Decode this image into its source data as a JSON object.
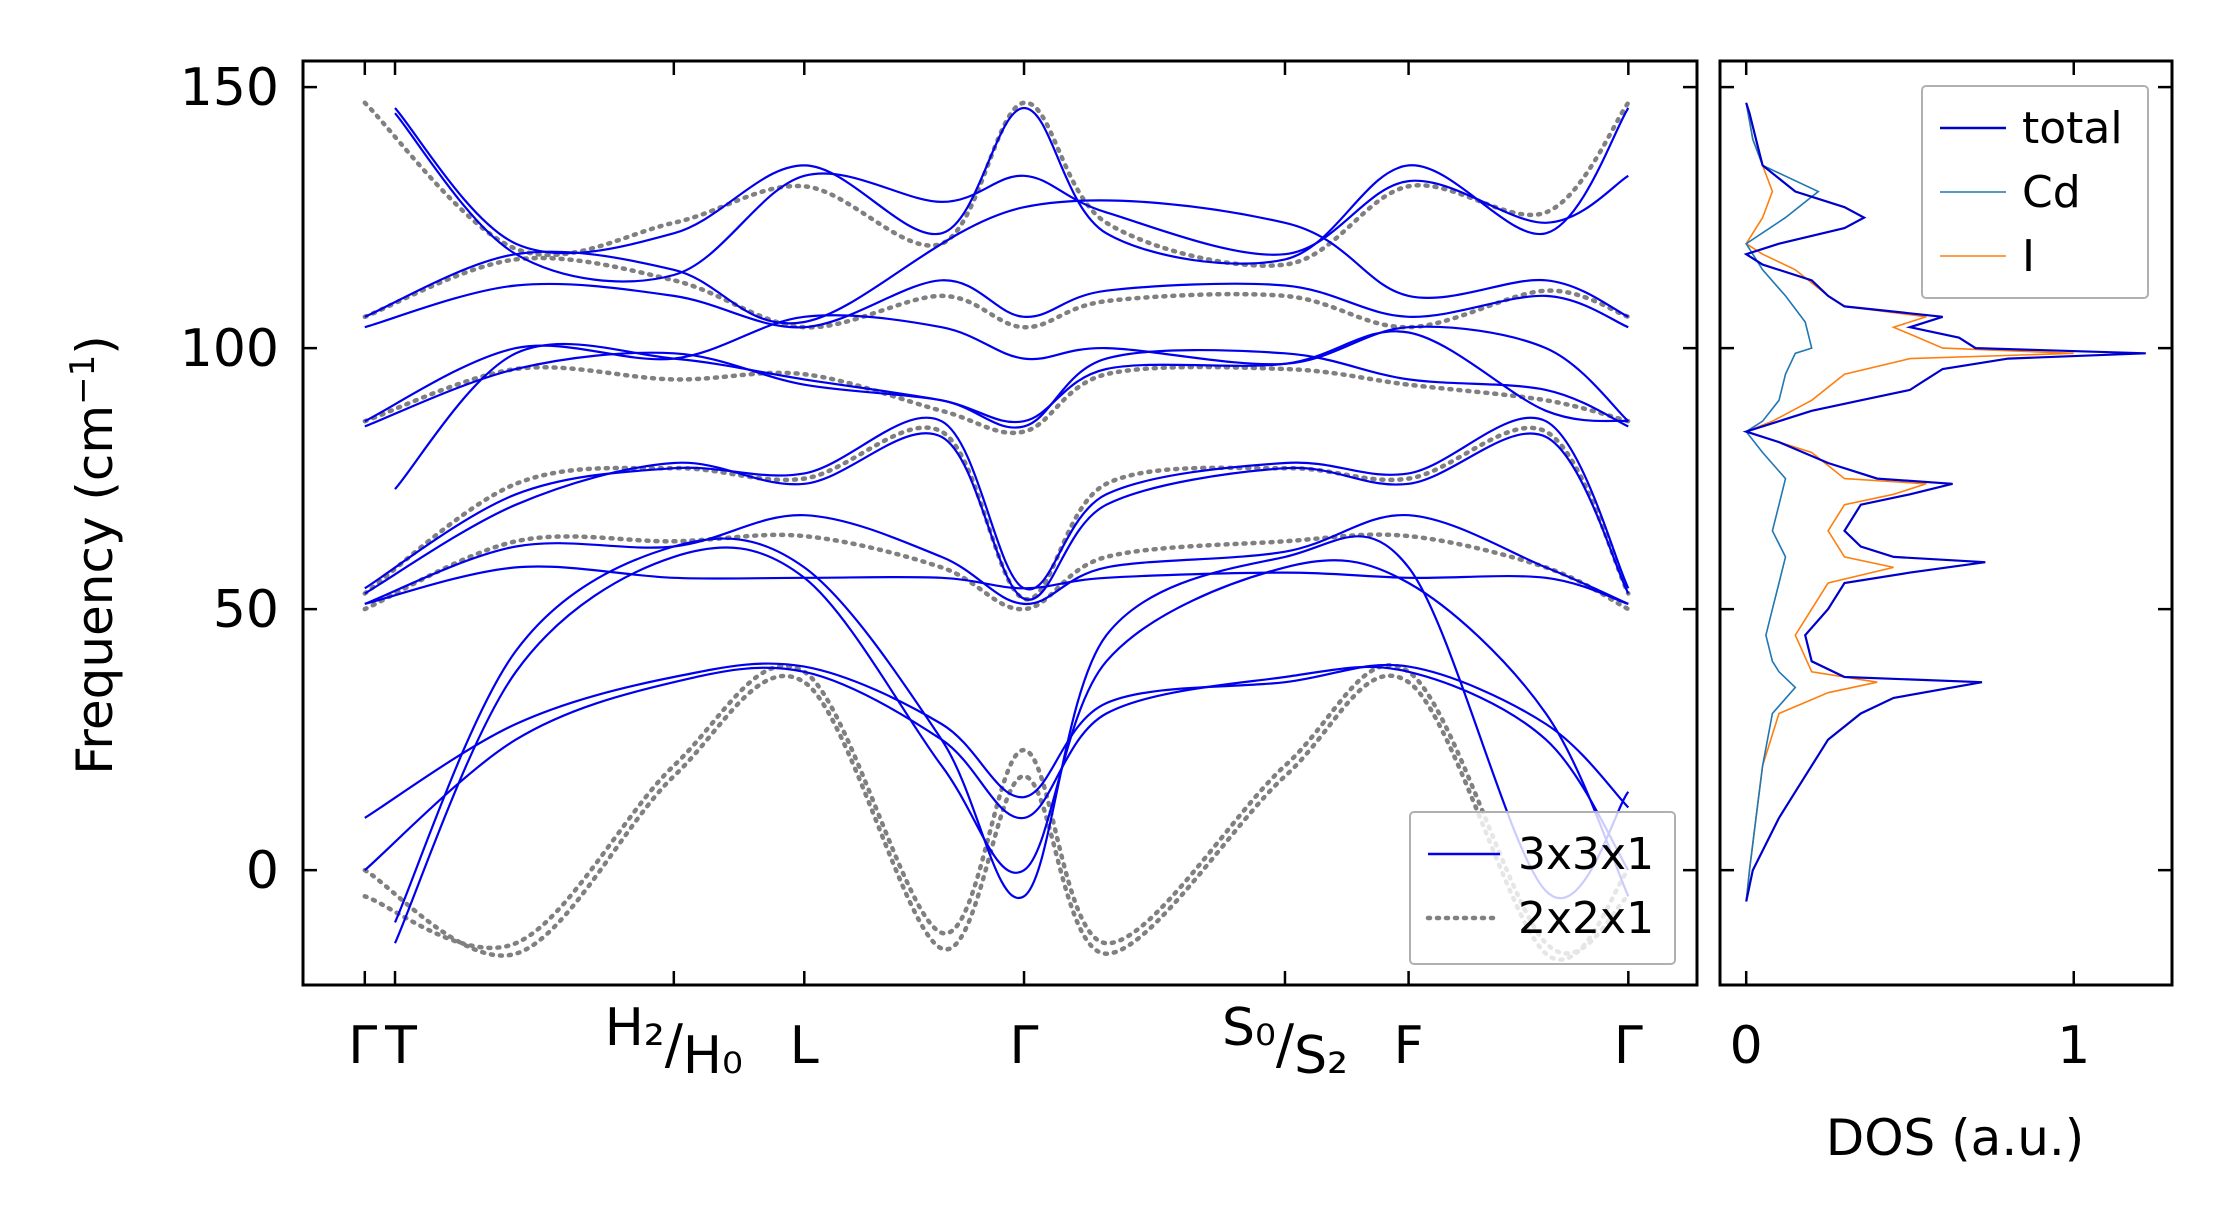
{
  "chart_data": [
    {
      "type": "line",
      "panel": "phonon-dispersion",
      "ylabel": "Frequency (cm",
      "ylabel_sup": "−1",
      "ylabel_close": ")",
      "ylim": [
        -22,
        155
      ],
      "yticks": [
        0,
        50,
        100,
        150
      ],
      "xticks": [
        {
          "pos": 0.0,
          "label": "Γ"
        },
        {
          "pos": 0.22,
          "label": "T"
        },
        {
          "pos": 2.25,
          "label": "H₂/H₀"
        },
        {
          "pos": 3.2,
          "label": "L"
        },
        {
          "pos": 4.8,
          "label": "Γ"
        },
        {
          "pos": 6.7,
          "label": "S₀/S₂"
        },
        {
          "pos": 7.6,
          "label": "F"
        },
        {
          "pos": 9.2,
          "label": "Γ"
        }
      ],
      "xlim": [
        -0.45,
        9.7
      ],
      "legend": {
        "placement": "lower-right",
        "entries": [
          {
            "name": "3x3x1",
            "color": "#0000ee",
            "style": "solid"
          },
          {
            "name": "2x2x1",
            "color": "#808080",
            "style": "dotted"
          }
        ]
      },
      "series": [
        {
          "name": "3x3x1",
          "color": "#0000ee",
          "bands": [
            {
              "x": [
                0.22,
                1.1,
                2.25,
                3.2,
                4.2,
                4.8,
                5.4,
                6.7,
                7.6,
                8.6,
                9.2
              ],
              "y": [
                146,
                120,
                122,
                135,
                122,
                146,
                122,
                117,
                135,
                122,
                146
              ]
            },
            {
              "x": [
                0.22,
                1.1,
                2.25,
                3.2,
                4.2,
                4.8,
                5.4,
                6.7,
                7.6,
                8.6,
                9.2
              ],
              "y": [
                145,
                118,
                114,
                133,
                128,
                133,
                126,
                118,
                132,
                124,
                133
              ]
            },
            {
              "x": [
                0.0,
                1.1,
                2.25,
                3.2,
                4.8,
                6.7,
                7.6,
                8.6,
                9.2
              ],
              "y": [
                106,
                118,
                115,
                105,
                127,
                124,
                110,
                113,
                106
              ]
            },
            {
              "x": [
                0.0,
                1.1,
                2.25,
                3.2,
                4.2,
                4.8,
                5.4,
                6.7,
                7.6,
                8.6,
                9.2
              ],
              "y": [
                104,
                112,
                110,
                104,
                113,
                106,
                111,
                112,
                106,
                110,
                104
              ]
            },
            {
              "x": [
                0.0,
                1.1,
                2.25,
                3.2,
                4.2,
                4.8,
                5.4,
                6.7,
                7.6,
                8.6,
                9.2
              ],
              "y": [
                86,
                100,
                98,
                106,
                104,
                98,
                100,
                97,
                104,
                100,
                86
              ]
            },
            {
              "x": [
                0.0,
                1.1,
                2.25,
                3.2,
                4.2,
                4.8,
                5.4,
                6.7,
                7.6,
                8.6,
                9.2
              ],
              "y": [
                85,
                96,
                99,
                93,
                90,
                85,
                98,
                99,
                94,
                92,
                85
              ]
            },
            {
              "x": [
                0.22,
                1.1,
                2.25,
                3.2,
                4.2,
                4.8,
                5.4,
                6.7,
                7.6,
                8.6,
                9.2
              ],
              "y": [
                73,
                99,
                98,
                94,
                90,
                86,
                96,
                97,
                103,
                88,
                86
              ]
            },
            {
              "x": [
                0.0,
                1.1,
                2.25,
                3.2,
                4.2,
                4.8,
                5.4,
                6.7,
                7.6,
                8.6,
                9.2
              ],
              "y": [
                54,
                72,
                77,
                76,
                86,
                54,
                72,
                78,
                76,
                86,
                54
              ]
            },
            {
              "x": [
                0.0,
                1.1,
                2.25,
                3.2,
                4.2,
                4.8,
                5.4,
                6.7,
                7.6,
                8.6,
                9.2
              ],
              "y": [
                53,
                70,
                78,
                74,
                83,
                52,
                70,
                77,
                74,
                83,
                53
              ]
            },
            {
              "x": [
                0.0,
                1.1,
                2.25,
                3.2,
                4.2,
                4.8,
                5.4,
                6.7,
                7.6,
                8.6,
                9.2
              ],
              "y": [
                51,
                62,
                62,
                68,
                60,
                51,
                58,
                61,
                68,
                58,
                51
              ]
            },
            {
              "x": [
                0.0,
                1.1,
                2.25,
                3.2,
                4.2,
                4.8,
                5.4,
                6.7,
                7.6,
                8.6,
                9.2
              ],
              "y": [
                51,
                58,
                56,
                56,
                56,
                54,
                56,
                57,
                56,
                56,
                51
              ]
            },
            {
              "x": [
                0.0,
                1.1,
                2.25,
                3.2,
                4.2,
                4.8,
                5.4,
                6.7,
                7.6,
                8.6,
                9.2
              ],
              "y": [
                0,
                25,
                36,
                38,
                25,
                10,
                30,
                37,
                38,
                25,
                0
              ]
            },
            {
              "x": [
                0.0,
                1.1,
                2.25,
                3.2,
                4.2,
                4.8,
                5.4,
                6.7,
                7.6,
                8.6,
                9.2
              ],
              "y": [
                10,
                28,
                37,
                39,
                28,
                14,
                32,
                36,
                39,
                28,
                12
              ]
            },
            {
              "x": [
                0.22,
                1.1,
                2.25,
                3.2,
                4.2,
                4.8,
                5.4,
                6.7,
                7.6,
                8.6,
                9.2
              ],
              "y": [
                -14,
                38,
                60,
                56,
                20,
                0,
                40,
                58,
                55,
                30,
                -5
              ]
            },
            {
              "x": [
                0.22,
                1.1,
                2.25,
                3.2,
                4.2,
                4.8,
                5.4,
                6.7,
                7.6,
                8.6,
                9.2
              ],
              "y": [
                -10,
                42,
                62,
                58,
                25,
                -5,
                45,
                60,
                58,
                -4,
                15
              ]
            }
          ]
        },
        {
          "name": "2x2x1",
          "color": "#808080",
          "bands": [
            {
              "x": [
                0.0,
                1.1,
                2.25,
                3.2,
                4.2,
                4.8,
                5.4,
                6.7,
                7.6,
                8.6,
                9.2
              ],
              "y": [
                147,
                119,
                124,
                131,
                120,
                147,
                124,
                116,
                131,
                126,
                147
              ]
            },
            {
              "x": [
                0.0,
                1.1,
                2.25,
                3.2,
                4.2,
                4.8,
                5.4,
                6.7,
                7.6,
                8.6,
                9.2
              ],
              "y": [
                106,
                117,
                113,
                104,
                110,
                104,
                109,
                110,
                104,
                111,
                106
              ]
            },
            {
              "x": [
                0.0,
                1.1,
                2.25,
                3.2,
                4.2,
                4.8,
                5.4,
                6.7,
                7.6,
                8.6,
                9.2
              ],
              "y": [
                86,
                96,
                94,
                95,
                88,
                84,
                95,
                96,
                93,
                90,
                86
              ]
            },
            {
              "x": [
                0.0,
                1.1,
                2.25,
                3.2,
                4.2,
                4.8,
                5.4,
                6.7,
                7.6,
                8.6,
                9.2
              ],
              "y": [
                53,
                74,
                77,
                75,
                84,
                52,
                74,
                77,
                75,
                84,
                53
              ]
            },
            {
              "x": [
                0.0,
                1.1,
                2.25,
                3.2,
                4.2,
                4.8,
                5.4,
                6.7,
                7.6,
                8.6,
                9.2
              ],
              "y": [
                50,
                63,
                63,
                64,
                58,
                50,
                60,
                63,
                64,
                58,
                50
              ]
            },
            {
              "x": [
                0.0,
                1.1,
                2.25,
                3.2,
                4.2,
                4.8,
                5.4,
                6.7,
                7.6,
                8.6,
                9.2
              ],
              "y": [
                -5,
                -14,
                20,
                38,
                -12,
                23,
                -14,
                20,
                38,
                -14,
                -5
              ]
            },
            {
              "x": [
                0.0,
                1.1,
                2.25,
                3.2,
                4.2,
                4.8,
                5.4,
                6.7,
                7.6,
                8.6,
                9.2
              ],
              "y": [
                0,
                -16,
                18,
                36,
                -15,
                18,
                -16,
                18,
                36,
                -16,
                0
              ]
            }
          ]
        }
      ]
    },
    {
      "type": "line",
      "panel": "dos",
      "xlabel": "DOS (a.u.)",
      "xlim": [
        -0.08,
        1.3
      ],
      "xticks": [
        0,
        1
      ],
      "ylim": [
        -22,
        155
      ],
      "legend": {
        "placement": "top-right",
        "entries": [
          {
            "name": "total",
            "color": "#0000cc"
          },
          {
            "name": "Cd",
            "color": "#1f77b4"
          },
          {
            "name": "I",
            "color": "#ff7f0e"
          }
        ]
      },
      "series": [
        {
          "name": "total",
          "color": "#0000cc",
          "y": [
            -6,
            0,
            5,
            10,
            15,
            20,
            25,
            30,
            33,
            36,
            37,
            40,
            45,
            50,
            55,
            57,
            59,
            60,
            62,
            65,
            70,
            72,
            74,
            75,
            78,
            82,
            84,
            86,
            88,
            90,
            92,
            94,
            96,
            98,
            99,
            100,
            102,
            104,
            106,
            108,
            110,
            113,
            116,
            118,
            120,
            123,
            125,
            127,
            130,
            135,
            140,
            145,
            147
          ],
          "v": [
            0.0,
            0.02,
            0.06,
            0.1,
            0.15,
            0.2,
            0.25,
            0.35,
            0.45,
            0.72,
            0.3,
            0.2,
            0.18,
            0.25,
            0.3,
            0.5,
            0.73,
            0.45,
            0.35,
            0.3,
            0.35,
            0.5,
            0.63,
            0.4,
            0.25,
            0.1,
            0.0,
            0.1,
            0.2,
            0.35,
            0.5,
            0.55,
            0.6,
            0.8,
            1.22,
            0.7,
            0.65,
            0.5,
            0.6,
            0.3,
            0.25,
            0.2,
            0.05,
            0.0,
            0.1,
            0.3,
            0.36,
            0.3,
            0.15,
            0.05,
            0.03,
            0.01,
            0.0
          ]
        },
        {
          "name": "Cd",
          "color": "#1f77b4",
          "y": [
            -6,
            0,
            10,
            20,
            30,
            35,
            38,
            40,
            45,
            50,
            55,
            60,
            65,
            70,
            75,
            80,
            84,
            86,
            90,
            95,
            99,
            100,
            105,
            110,
            115,
            120,
            125,
            130,
            135,
            140,
            147
          ],
          "v": [
            0.0,
            0.01,
            0.03,
            0.05,
            0.08,
            0.15,
            0.1,
            0.08,
            0.06,
            0.08,
            0.1,
            0.12,
            0.08,
            0.1,
            0.12,
            0.05,
            0.0,
            0.05,
            0.1,
            0.12,
            0.15,
            0.2,
            0.18,
            0.12,
            0.05,
            0.0,
            0.12,
            0.22,
            0.05,
            0.02,
            0.0
          ]
        },
        {
          "name": "I",
          "color": "#ff7f0e",
          "y": [
            -6,
            0,
            10,
            20,
            30,
            34,
            36,
            38,
            45,
            50,
            55,
            58,
            60,
            65,
            70,
            72,
            74,
            75,
            80,
            84,
            86,
            90,
            95,
            98,
            99,
            100,
            104,
            106,
            108,
            110,
            115,
            118,
            120,
            125,
            130,
            140,
            147
          ],
          "v": [
            0.0,
            0.01,
            0.03,
            0.05,
            0.1,
            0.25,
            0.4,
            0.2,
            0.15,
            0.2,
            0.25,
            0.45,
            0.3,
            0.25,
            0.3,
            0.45,
            0.55,
            0.3,
            0.2,
            0.0,
            0.08,
            0.2,
            0.3,
            0.5,
            1.0,
            0.6,
            0.45,
            0.55,
            0.3,
            0.25,
            0.15,
            0.05,
            0.0,
            0.05,
            0.08,
            0.02,
            0.0
          ]
        }
      ]
    }
  ]
}
